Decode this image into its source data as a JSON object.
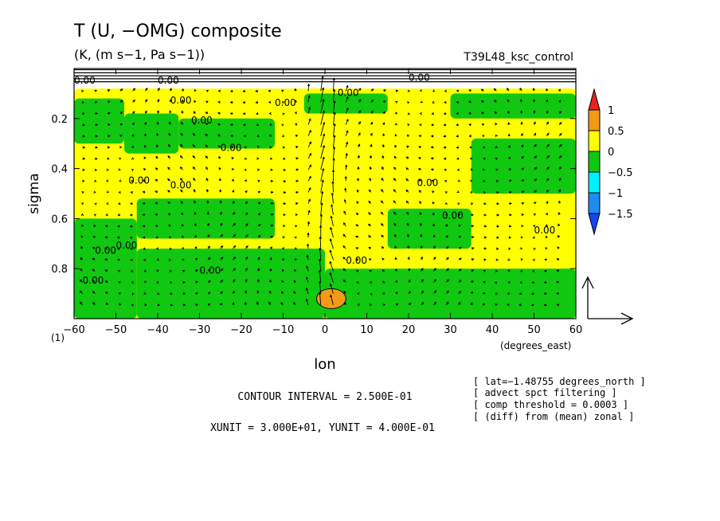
{
  "chart_data": {
    "type": "heatmap",
    "title": "T (U, −OMG) composite",
    "units_line": "(K, (m s−1, Pa s−1))",
    "run_name": "T39L48_ksc_control",
    "xlabel": "lon",
    "x_units_note": "(degrees_east)",
    "ylabel": "sigma",
    "y_bottom_label": "(1)",
    "xlim": [
      -60,
      60
    ],
    "ylim": [
      1.0,
      0.0
    ],
    "y_inverted": true,
    "x_ticks": [
      -60,
      -50,
      -40,
      -30,
      -20,
      -10,
      0,
      10,
      20,
      30,
      40,
      50,
      60
    ],
    "x_tick_labels": [
      "−60",
      "−50",
      "−40",
      "−30",
      "−20",
      "−10",
      "0",
      "10",
      "20",
      "30",
      "40",
      "50",
      "60"
    ],
    "y_ticks": [
      0.2,
      0.4,
      0.6,
      0.8
    ],
    "y_tick_labels": [
      "0.2",
      "0.4",
      "0.6",
      "0.8"
    ],
    "colorbar": {
      "levels": [
        "1",
        "0.5",
        "0",
        "−0.5",
        "−1",
        "−1.5"
      ],
      "colors": [
        "#e8231e",
        "#f59a17",
        "#ffff00",
        "#10c810",
        "#00f0ff",
        "#1e8cf0",
        "#1446f0"
      ]
    },
    "contour_label": "0.00",
    "contour_label_positions": [
      [
        -37,
        0.14
      ],
      [
        -12,
        0.15
      ],
      [
        -32,
        0.22
      ],
      [
        -25,
        0.33
      ],
      [
        -47,
        0.46
      ],
      [
        -37,
        0.48
      ],
      [
        -50,
        0.72
      ],
      [
        -55,
        0.74
      ],
      [
        -30,
        0.82
      ],
      [
        -58,
        0.86
      ],
      [
        5,
        0.78
      ],
      [
        22,
        0.47
      ],
      [
        28,
        0.6
      ],
      [
        50,
        0.66
      ],
      [
        3,
        0.11
      ],
      [
        20,
        0.05
      ],
      [
        -40,
        0.06
      ],
      [
        -60,
        0.06
      ]
    ],
    "field_cells": [
      {
        "x": [
          -60,
          60
        ],
        "y": [
          0.08,
          1.0
        ],
        "level": 0
      },
      {
        "x": [
          -60,
          -48
        ],
        "y": [
          0.12,
          0.3
        ],
        "level": -1
      },
      {
        "x": [
          -48,
          -35
        ],
        "y": [
          0.18,
          0.34
        ],
        "level": -1
      },
      {
        "x": [
          -35,
          -12
        ],
        "y": [
          0.2,
          0.32
        ],
        "level": -1
      },
      {
        "x": [
          -45,
          -12
        ],
        "y": [
          0.52,
          0.68
        ],
        "level": -1
      },
      {
        "x": [
          -60,
          -45
        ],
        "y": [
          0.6,
          1.0
        ],
        "level": -1
      },
      {
        "x": [
          -45,
          0
        ],
        "y": [
          0.72,
          1.0
        ],
        "level": -1
      },
      {
        "x": [
          0,
          60
        ],
        "y": [
          0.8,
          1.0
        ],
        "level": -1
      },
      {
        "x": [
          15,
          35
        ],
        "y": [
          0.56,
          0.72
        ],
        "level": -1
      },
      {
        "x": [
          35,
          60
        ],
        "y": [
          0.28,
          0.5
        ],
        "level": -1
      },
      {
        "x": [
          -5,
          15
        ],
        "y": [
          0.1,
          0.18
        ],
        "level": -1
      },
      {
        "x": [
          30,
          60
        ],
        "y": [
          0.1,
          0.2
        ],
        "level": -1
      },
      {
        "x": [
          -2,
          5
        ],
        "y": [
          0.88,
          0.96
        ],
        "level": 1
      }
    ],
    "vector_reference_units": {
      "xunit": "3.000E+01",
      "yunit": "4.000E-01"
    },
    "grid": false,
    "legend_position": "right"
  },
  "annotations": {
    "contour_interval": "CONTOUR INTERVAL = 2.500E-01",
    "units_line": "XUNIT = 3.000E+01, YUNIT = 4.000E-01",
    "notes": [
      "[ lat=−1.48755 degrees_north ]",
      "[ advect spct filtering ]",
      "[ comp threshold = 0.0003 ]",
      "[ (diff) from (mean) zonal ]"
    ]
  }
}
